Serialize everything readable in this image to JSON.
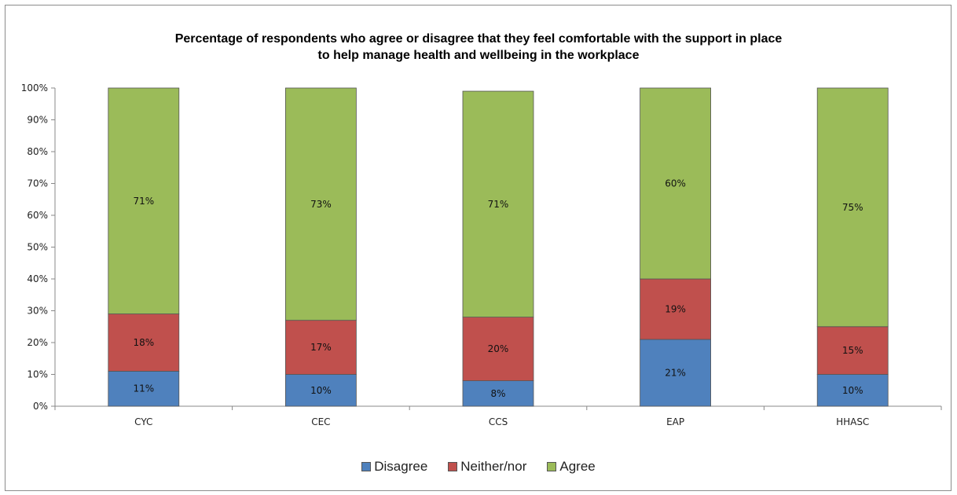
{
  "chart_data": {
    "type": "bar",
    "stacked": true,
    "title_lines": [
      "Percentage of respondents who agree or disagree that they feel comfortable with the support in place",
      "to help manage health and wellbeing in the workplace"
    ],
    "categories": [
      "CYC",
      "CEC",
      "CCS",
      "EAP",
      "HHASC"
    ],
    "series": [
      {
        "name": "Disagree",
        "color": "#4f81bd",
        "values": [
          11,
          10,
          8,
          21,
          10
        ]
      },
      {
        "name": "Neither/nor",
        "color": "#c0504d",
        "values": [
          18,
          17,
          20,
          19,
          15
        ]
      },
      {
        "name": "Agree",
        "color": "#9bbb59",
        "values": [
          71,
          73,
          71,
          60,
          75
        ]
      }
    ],
    "segment_labels": [
      [
        "11%",
        "10%",
        "8%",
        "21%",
        "10%"
      ],
      [
        "18%",
        "17%",
        "20%",
        "19%",
        "15%"
      ],
      [
        "71%",
        "73%",
        "71%",
        "60%",
        "75%"
      ]
    ],
    "y_ticks": [
      "0%",
      "10%",
      "20%",
      "30%",
      "40%",
      "50%",
      "60%",
      "70%",
      "80%",
      "90%",
      "100%"
    ],
    "ylim": [
      0,
      100
    ],
    "legend_position": "bottom",
    "grid": false
  }
}
